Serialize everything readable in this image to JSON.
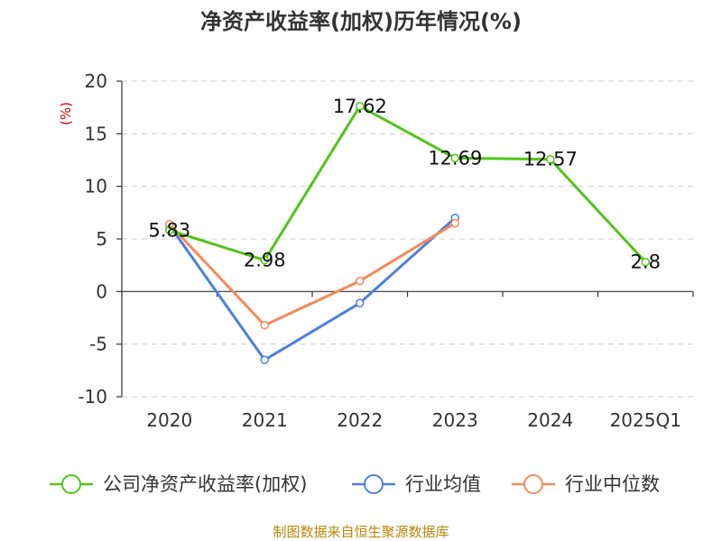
{
  "chart_data": {
    "type": "line",
    "title": "净资产收益率(加权)历年情况(%)",
    "y_unit": "(%)",
    "categories": [
      "2020",
      "2021",
      "2022",
      "2023",
      "2024",
      "2025Q1"
    ],
    "ylim": [
      -10,
      20
    ],
    "yticks": [
      20,
      15,
      10,
      5,
      0,
      -5,
      -10
    ],
    "grid": true,
    "legend_position": "bottom",
    "series": [
      {
        "name": "公司净资产收益率(加权)",
        "color": "#52c41a",
        "values": [
          5.83,
          2.98,
          17.62,
          12.69,
          12.57,
          2.8
        ],
        "labels": [
          "5.83",
          "2.98",
          "17.62",
          "12.69",
          "12.57",
          "2.8"
        ]
      },
      {
        "name": "行业均值",
        "color": "#4f7fdc",
        "values": [
          6.3,
          -6.5,
          -1.1,
          7.0,
          null,
          null
        ]
      },
      {
        "name": "行业中位数",
        "color": "#f58b5a",
        "values": [
          6.4,
          -3.2,
          1.0,
          6.5,
          null,
          null
        ]
      }
    ]
  },
  "source": "制图数据来自恒生聚源数据库"
}
